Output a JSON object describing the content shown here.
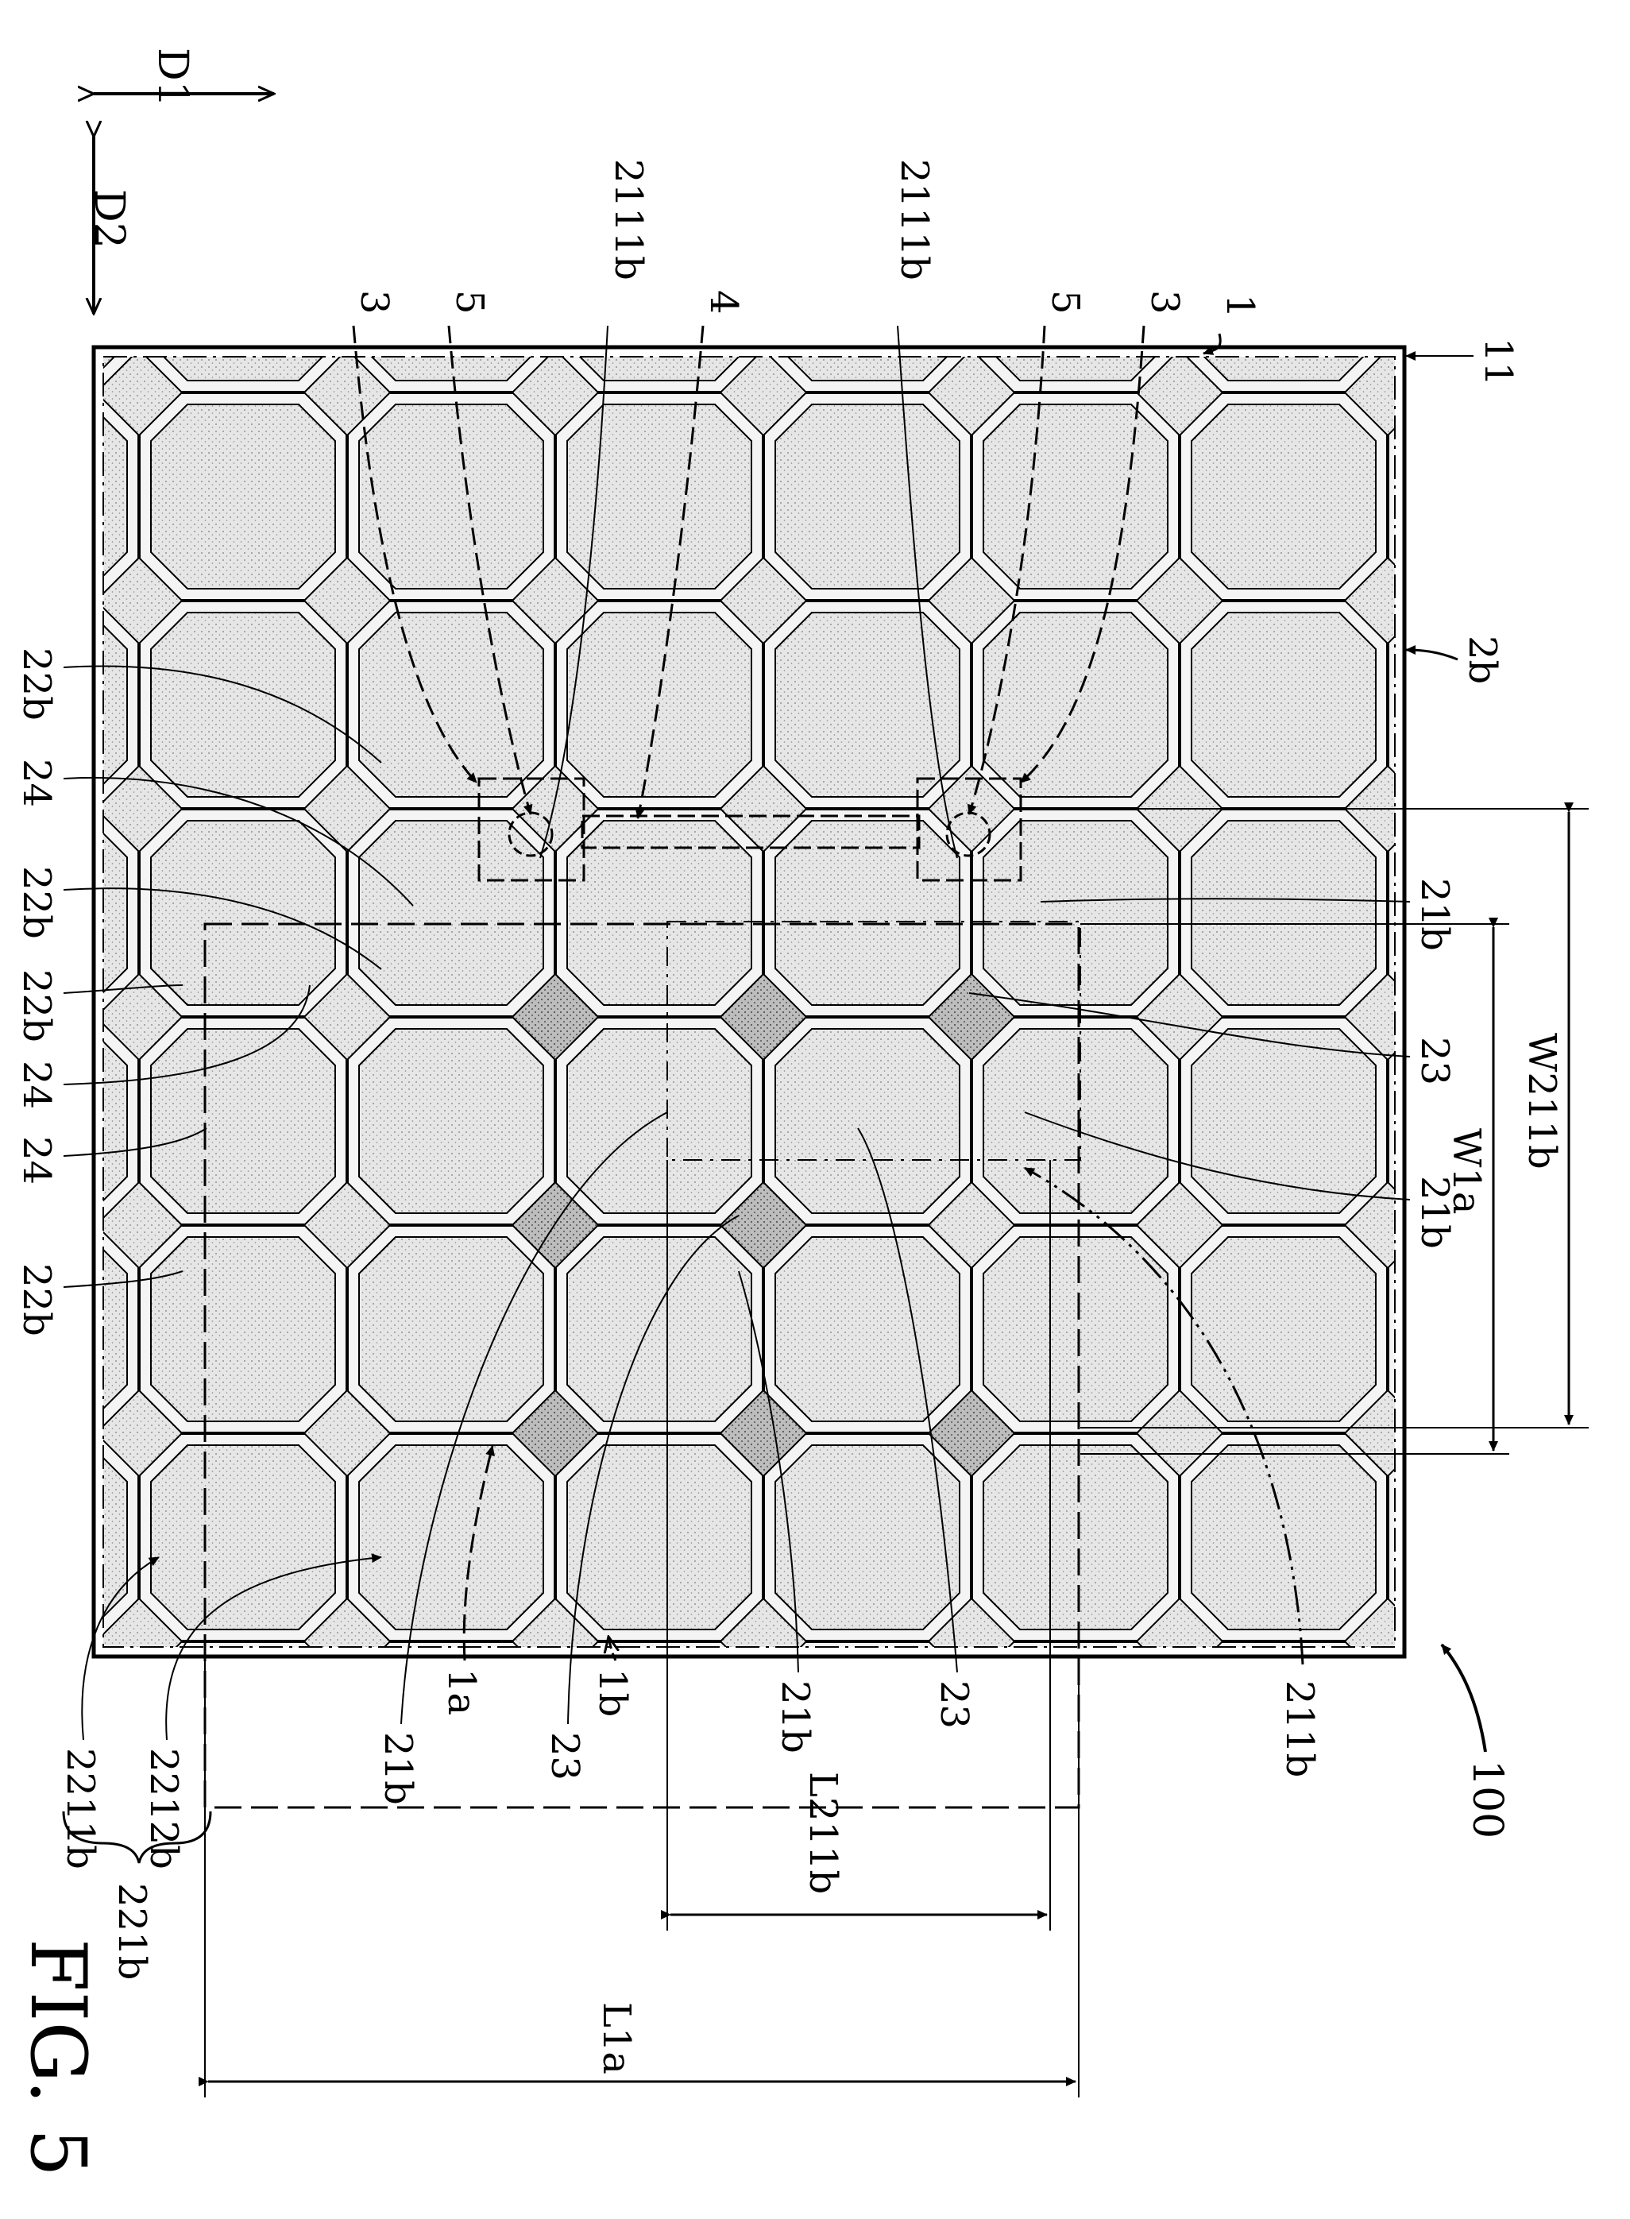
{
  "figure": {
    "caption": "FIG. 5"
  },
  "direction_labels": {
    "d1": "D1",
    "d2": "D2"
  },
  "callouts": [
    "2111b",
    "2111b",
    "3",
    "5",
    "4",
    "5",
    "3",
    "1",
    "11",
    "2b",
    "22b",
    "24",
    "22b",
    "22b",
    "24",
    "24",
    "22b",
    "21b",
    "23",
    "21b",
    "2211b",
    "2212b",
    "21b",
    "1a",
    "23",
    "1b",
    "21b",
    "23",
    "211b",
    "100"
  ],
  "group_brace_label": "221b",
  "dimensions": {
    "w211b": "W211b",
    "w1a": "W1a",
    "l211b": "L211b",
    "l1a": "L1a"
  },
  "colors": {
    "line": "#000000",
    "fill_light": "#d8d8d8",
    "fill_dark": "#b9b9b9",
    "background": "#ffffff"
  }
}
